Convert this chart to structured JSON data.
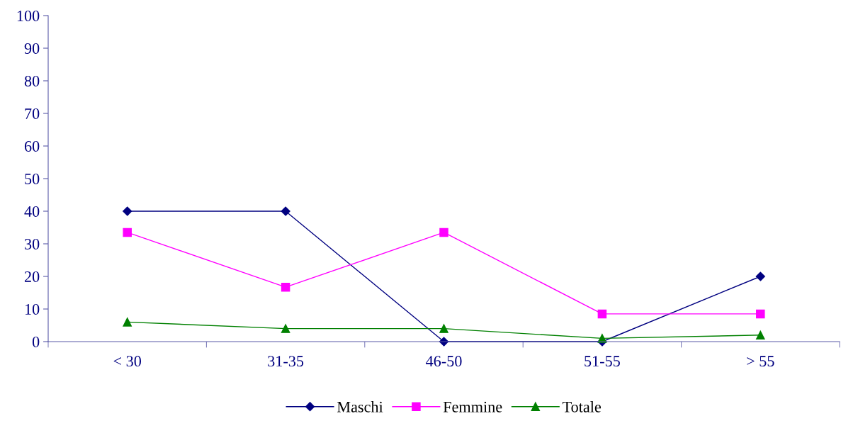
{
  "chart_data": {
    "type": "line",
    "categories": [
      "< 30",
      "31-35",
      "46-50",
      "51-55",
      "> 55"
    ],
    "series": [
      {
        "name": "Maschi",
        "color": "#000080",
        "marker": "diamond",
        "values": [
          40,
          40,
          0,
          0,
          20
        ]
      },
      {
        "name": "Femmine",
        "color": "#ff00ff",
        "marker": "square",
        "values": [
          33.5,
          16.7,
          33.5,
          8.5,
          8.5
        ]
      },
      {
        "name": "Totale",
        "color": "#008000",
        "marker": "triangle",
        "values": [
          6,
          4,
          4,
          1,
          2
        ]
      }
    ],
    "ylim": [
      0,
      100
    ],
    "yticks": [
      0,
      10,
      20,
      30,
      40,
      50,
      60,
      70,
      80,
      90,
      100
    ],
    "grid": false,
    "legend": "bottom",
    "line_style": "solid"
  }
}
